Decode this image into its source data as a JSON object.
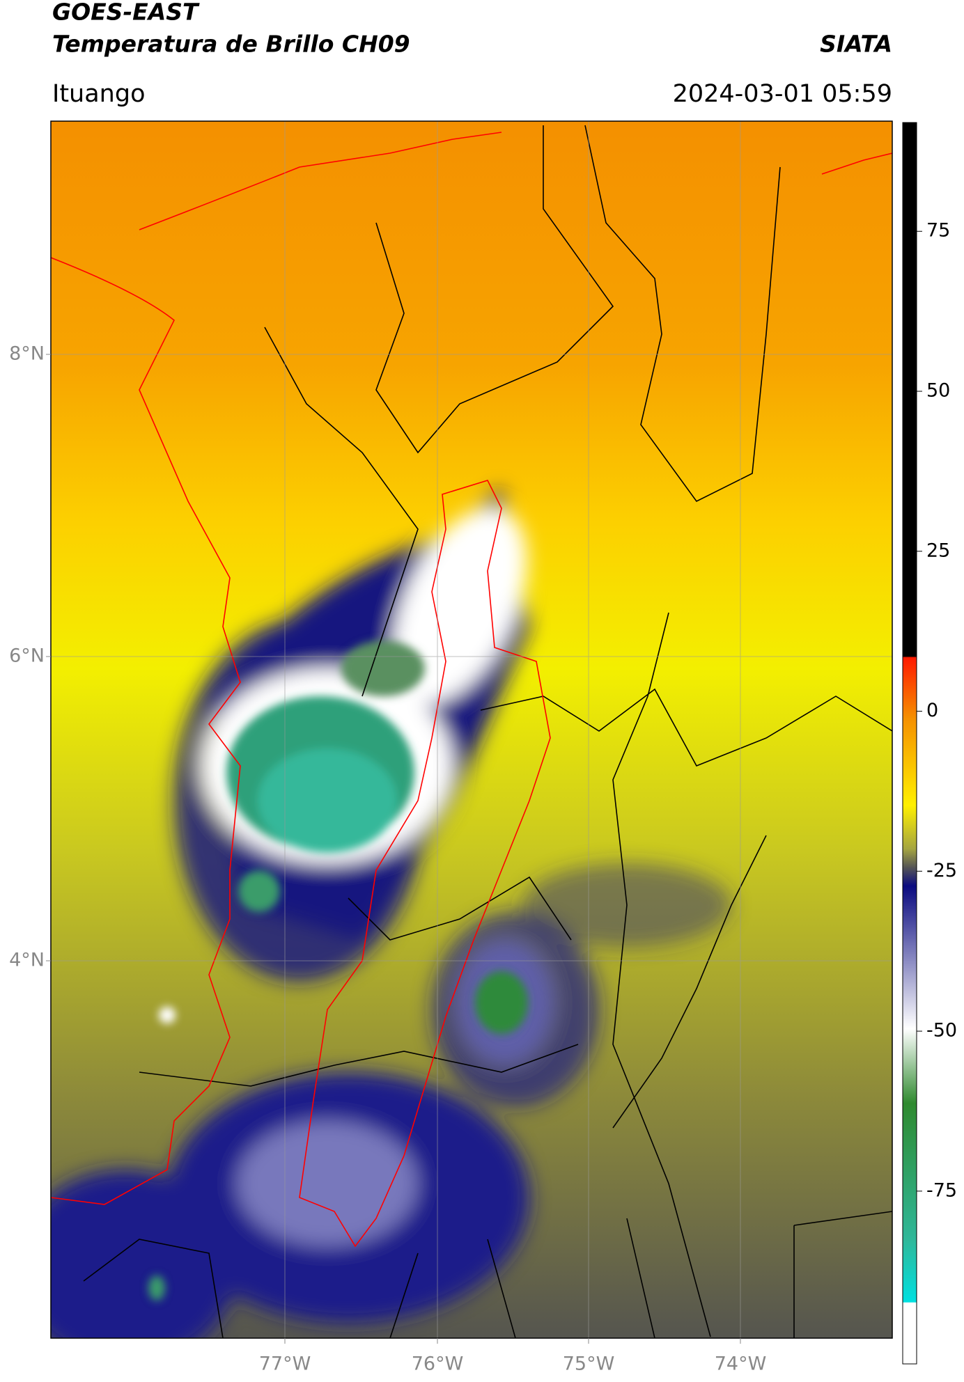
{
  "header": {
    "title": "GOES-EAST",
    "subtitle": "Temperatura de Brillo CH09",
    "source": "SIATA",
    "location": "Ituango",
    "datetime": "2024-03-01 05:59"
  },
  "map": {
    "lat_labels": [
      "8°N",
      "6°N",
      "4°N"
    ],
    "lon_labels": [
      "77°W",
      "76°W",
      "75°W",
      "74°W"
    ]
  },
  "colorbar": {
    "lim": [
      -102,
      92
    ],
    "ticks": [
      75,
      50,
      25,
      0,
      -25,
      -50,
      -75
    ]
  }
}
